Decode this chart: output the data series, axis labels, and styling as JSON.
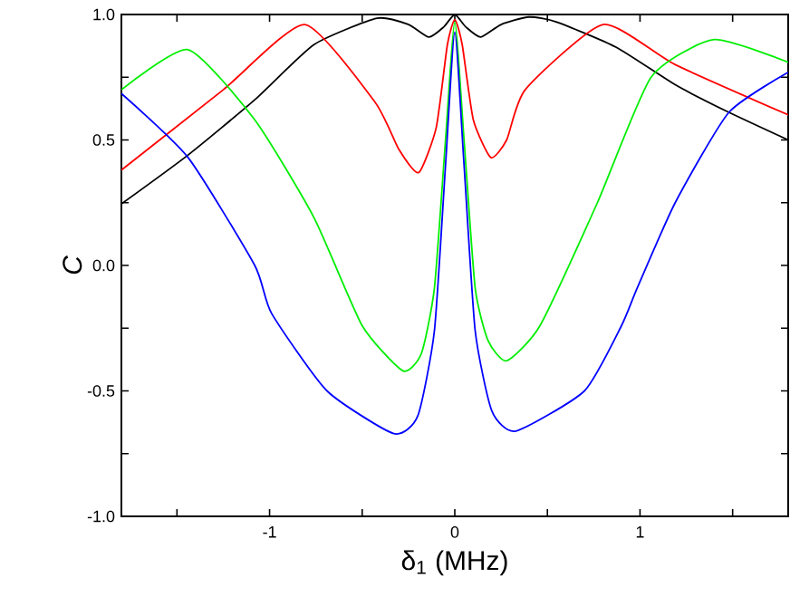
{
  "chart_data": {
    "type": "line",
    "xlabel": "δ$_{1}$ (MHz)",
    "ylabel": "C",
    "xlim": [
      -1.8,
      1.8
    ],
    "ylim": [
      -1,
      1
    ],
    "xticks": [
      {
        "value": -1.5,
        "label": null
      },
      {
        "value": -1,
        "label": "-1"
      },
      {
        "value": -0.5,
        "label": null
      },
      {
        "value": 0,
        "label": "0"
      },
      {
        "value": 0.5,
        "label": null
      },
      {
        "value": 1,
        "label": "1"
      },
      {
        "value": 1.5,
        "label": null
      }
    ],
    "yticks": [
      {
        "value": -1,
        "label": "-1.0"
      },
      {
        "value": -0.75,
        "label": null
      },
      {
        "value": -0.5,
        "label": "-0.5"
      },
      {
        "value": -0.25,
        "label": null
      },
      {
        "value": 0,
        "label": "0.0"
      },
      {
        "value": 0.25,
        "label": null
      },
      {
        "value": 0.5,
        "label": "0.5"
      },
      {
        "value": 0.75,
        "label": null
      },
      {
        "value": 1,
        "label": "1.0"
      }
    ],
    "grid": false,
    "marker": "none",
    "line_style": "solid",
    "series": [
      {
        "color": "#000000",
        "x": [
          -1.8,
          -1.44,
          -1.08,
          -0.76,
          -0.42,
          -0.25,
          -0.14,
          -0.06,
          0,
          0.06,
          0.14,
          0.25,
          0.4,
          0.55,
          0.87,
          1.19,
          1.48,
          1.8
        ],
        "values": [
          0.245,
          0.44,
          0.66,
          0.88,
          0.985,
          0.96,
          0.91,
          0.95,
          1.0,
          0.95,
          0.91,
          0.96,
          0.99,
          0.97,
          0.87,
          0.72,
          0.61,
          0.5
        ]
      },
      {
        "color": "#ff0000",
        "x": [
          -1.8,
          -1.25,
          -0.81,
          -0.43,
          -0.3,
          -0.195,
          -0.1,
          -0.04,
          0,
          0.04,
          0.1,
          0.195,
          0.28,
          0.38,
          0.8,
          1.19,
          1.8
        ],
        "values": [
          0.38,
          0.7,
          0.96,
          0.65,
          0.46,
          0.37,
          0.55,
          0.88,
          0.98,
          0.88,
          0.58,
          0.43,
          0.5,
          0.7,
          0.96,
          0.8,
          0.6
        ]
      },
      {
        "color": "#00ee00",
        "x": [
          -1.8,
          -1.44,
          -1.08,
          -0.76,
          -0.5,
          -0.28,
          -0.18,
          -0.11,
          -0.05,
          0,
          0.05,
          0.11,
          0.18,
          0.28,
          0.46,
          0.77,
          1.06,
          1.4,
          1.8
        ],
        "values": [
          0.7,
          0.86,
          0.58,
          0.19,
          -0.24,
          -0.42,
          -0.35,
          -0.09,
          0.5,
          0.97,
          0.5,
          -0.09,
          -0.3,
          -0.38,
          -0.24,
          0.25,
          0.75,
          0.9,
          0.81
        ]
      },
      {
        "color": "#0000ff",
        "x": [
          -1.8,
          -1.44,
          -1.08,
          -0.99,
          -0.69,
          -0.33,
          -0.2,
          -0.11,
          -0.05,
          0,
          0.05,
          0.11,
          0.2,
          0.33,
          0.7,
          0.9,
          0.985,
          1.19,
          1.48,
          1.8
        ],
        "values": [
          0.685,
          0.43,
          0.0,
          -0.19,
          -0.5,
          -0.67,
          -0.6,
          -0.26,
          0.4,
          0.93,
          0.4,
          -0.26,
          -0.58,
          -0.66,
          -0.5,
          -0.24,
          -0.09,
          0.25,
          0.61,
          0.77
        ]
      }
    ]
  }
}
